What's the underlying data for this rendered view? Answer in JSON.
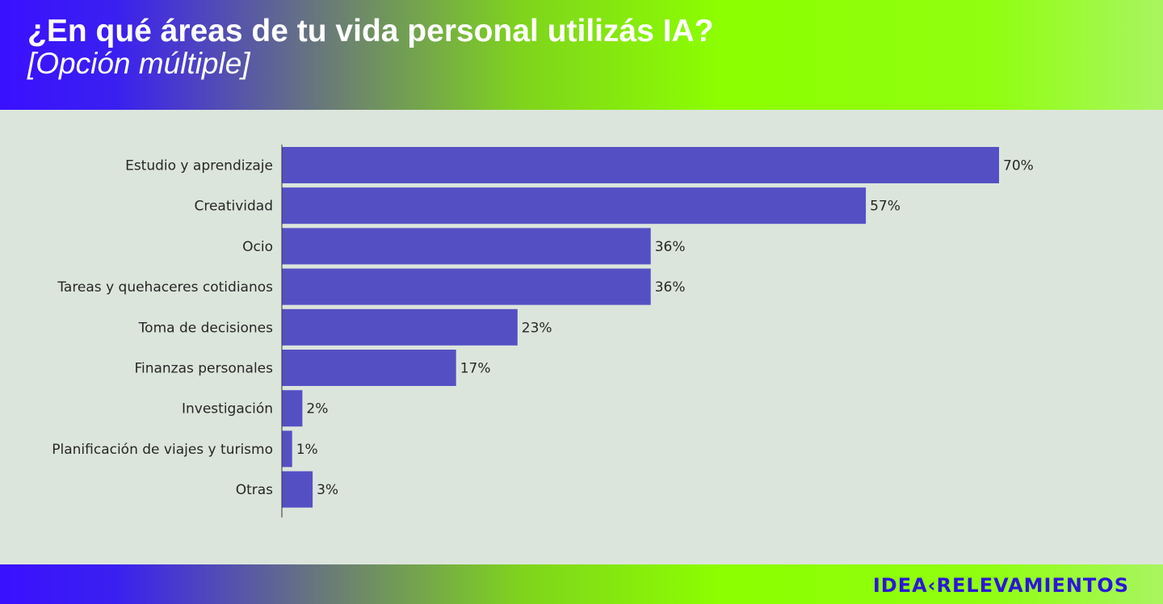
{
  "header": {
    "title": "¿En qué áreas de tu vida personal utilizás IA?",
    "subtitle": "[Opción múltiple]"
  },
  "footer": {
    "logo_text": "IDEA‹RELEVAMIENTOS"
  },
  "colors": {
    "bar": "#5450c4",
    "background": "#dce5dc",
    "text": "#262626"
  },
  "chart_data": {
    "type": "bar",
    "orientation": "horizontal",
    "title": "¿En qué áreas de tu vida personal utilizás IA?",
    "subtitle": "[Opción múltiple]",
    "xlabel": "",
    "ylabel": "",
    "unit": "%",
    "xlim": [
      0,
      70
    ],
    "grid": false,
    "categories": [
      "Estudio y aprendizaje",
      "Creatividad",
      "Ocio",
      "Tareas y quehaceres cotidianos",
      "Toma de decisiones",
      "Finanzas personales",
      "Investigación",
      "Planificación de viajes y turismo",
      "Otras"
    ],
    "values": [
      70,
      57,
      36,
      36,
      23,
      17,
      2,
      1,
      3
    ],
    "value_labels": [
      "70%",
      "57%",
      "36%",
      "36%",
      "23%",
      "17%",
      "2%",
      "1%",
      "3%"
    ]
  }
}
